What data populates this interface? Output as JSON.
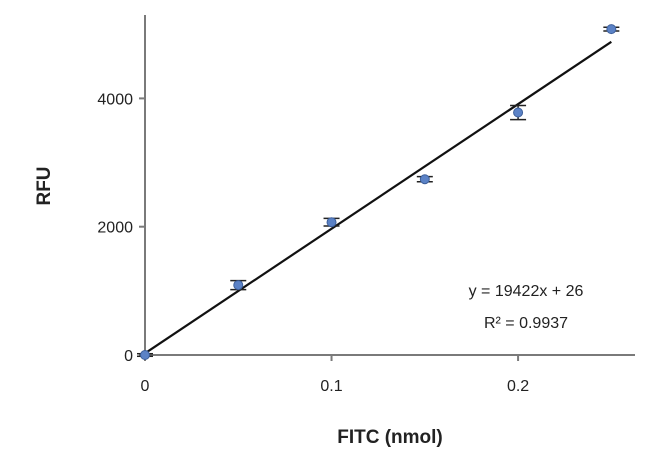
{
  "chart_data": {
    "type": "scatter",
    "title": "",
    "xlabel": "FITC (nmol)",
    "ylabel": "RFU",
    "xlim": [
      0,
      0.26
    ],
    "ylim": [
      0,
      5300
    ],
    "x_ticks": [
      0,
      0.1,
      0.2
    ],
    "x_tick_labels": [
      "0",
      "0.1",
      "0.2"
    ],
    "y_ticks": [
      0,
      2000,
      4000
    ],
    "y_tick_labels": [
      "0",
      "2000",
      "4000"
    ],
    "grid": false,
    "legend": "none",
    "series": [
      {
        "x": [
          0,
          0.05,
          0.1,
          0.15,
          0.2,
          0.25
        ],
        "y": [
          0,
          1090,
          2070,
          2740,
          3780,
          5080
        ],
        "error": [
          20,
          70,
          60,
          40,
          110,
          30
        ],
        "color": "#5b82c6"
      }
    ],
    "trendline": {
      "slope": 19422,
      "intercept": 26,
      "color": "#111111"
    },
    "annotations": {
      "equation": "y = 19422x + 26",
      "r_squared": "R² = 0.9937"
    }
  }
}
